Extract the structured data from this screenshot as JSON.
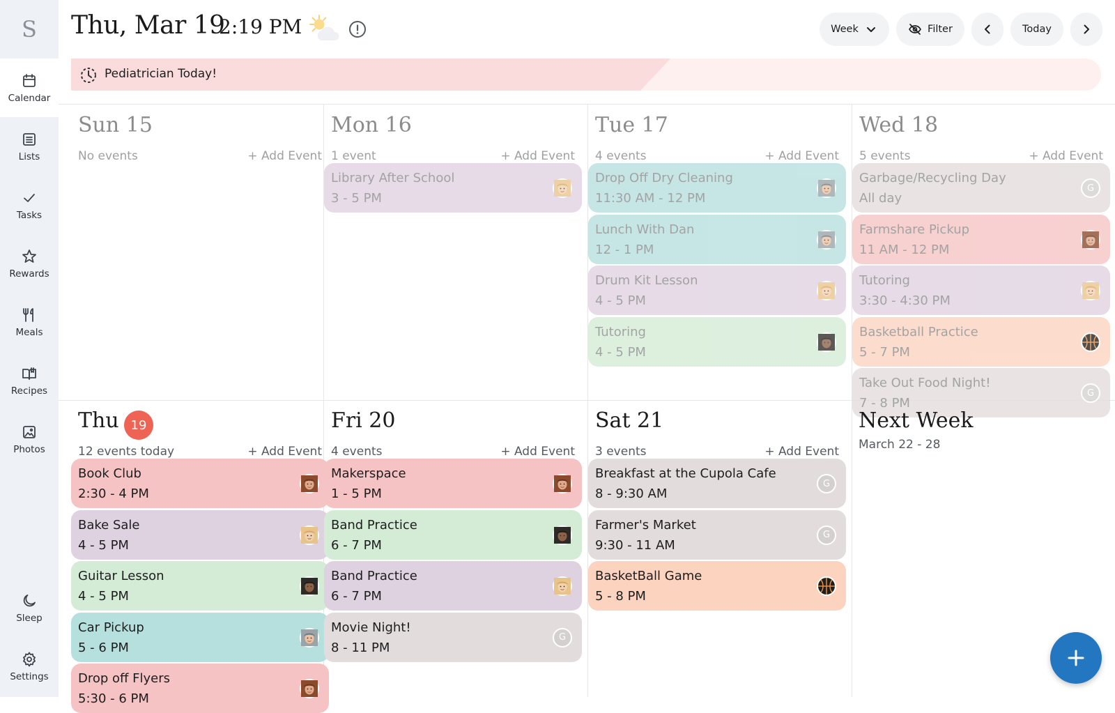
{
  "sidebar": {
    "logo": "S",
    "items": [
      {
        "label": "Calendar",
        "icon": "calendar-icon",
        "active": true
      },
      {
        "label": "Lists",
        "icon": "list-icon"
      },
      {
        "label": "Tasks",
        "icon": "checkmark-icon"
      },
      {
        "label": "Rewards",
        "icon": "star-icon"
      },
      {
        "label": "Meals",
        "icon": "fork-knife-icon"
      },
      {
        "label": "Recipes",
        "icon": "book-icon"
      },
      {
        "label": "Photos",
        "icon": "photo-icon"
      },
      {
        "label": "Sleep",
        "icon": "moon-icon"
      },
      {
        "label": "Settings",
        "icon": "gear-icon"
      }
    ]
  },
  "header": {
    "date": "Thu, Mar 19",
    "time": "2:19 PM",
    "weather_icon": "sun-cloud-icon",
    "alert_icon": "alert-circle-icon",
    "view_label": "Week",
    "filter_label": "Filter",
    "today_label": "Today"
  },
  "banner": {
    "icon": "progress-clock-icon",
    "text": "Pediatrician  Today!"
  },
  "days": [
    {
      "title": "Sun 15",
      "count": "No events",
      "add": "+ Add Event",
      "events": []
    },
    {
      "title": "Mon 16",
      "count": "1 event",
      "add": "+ Add Event",
      "events": [
        {
          "title": "Library After School",
          "time": "3 - 5 PM",
          "color": "purple",
          "avatar": "girl-blonde"
        }
      ]
    },
    {
      "title": "Tue 17",
      "count": "4 events",
      "add": "+ Add Event",
      "events": [
        {
          "title": "Drop Off Dry Cleaning",
          "time": "11:30 AM - 12 PM",
          "color": "teal",
          "avatar": "man-gray"
        },
        {
          "title": "Lunch With Dan",
          "time": "12 - 1 PM",
          "color": "teal",
          "avatar": "man-gray"
        },
        {
          "title": "Drum Kit Lesson",
          "time": "4 - 5 PM",
          "color": "purple",
          "avatar": "girl-blonde"
        },
        {
          "title": "Tutoring",
          "time": "4 - 5 PM",
          "color": "green",
          "avatar": "boy-dark"
        }
      ]
    },
    {
      "title": "Wed 18",
      "count": "5 events",
      "add": "+ Add Event",
      "events": [
        {
          "title": "Garbage/Recycling Day",
          "time": "All day",
          "color": "gray",
          "avatar": "G"
        },
        {
          "title": "Farmshare Pickup",
          "time": "11 AM - 12 PM",
          "color": "pink",
          "avatar": "woman-brown"
        },
        {
          "title": "Tutoring",
          "time": "3:30 - 4:30 PM",
          "color": "purple",
          "avatar": "girl-blonde"
        },
        {
          "title": "Basketball Practice",
          "time": "5 - 7 PM",
          "color": "orange",
          "avatar": "basketball"
        },
        {
          "title": "Take Out Food Night!",
          "time": "7 - 8 PM",
          "color": "gray",
          "avatar": "G"
        }
      ]
    },
    {
      "title": "Thu",
      "badge": "19",
      "count": "12 events today",
      "add": "+ Add Event",
      "events": [
        {
          "title": "Book Club",
          "time": "2:30 - 4 PM",
          "color": "pink",
          "avatar": "woman-brown"
        },
        {
          "title": "Bake Sale",
          "time": "4 - 5 PM",
          "color": "purple",
          "avatar": "girl-blonde"
        },
        {
          "title": "Guitar Lesson",
          "time": "4 - 5 PM",
          "color": "green",
          "avatar": "boy-dark"
        },
        {
          "title": "Car Pickup",
          "time": "5 - 6 PM",
          "color": "teal",
          "avatar": "man-gray"
        },
        {
          "title": "Drop off Flyers",
          "time": "5:30 - 6 PM",
          "color": "pink",
          "avatar": "woman-brown"
        }
      ]
    },
    {
      "title": "Fri 20",
      "count": "4 events",
      "add": "+ Add Event",
      "events": [
        {
          "title": "Makerspace",
          "time": "1 - 5 PM",
          "color": "pink",
          "avatar": "woman-brown"
        },
        {
          "title": "Band Practice",
          "time": "6 - 7 PM",
          "color": "green",
          "avatar": "boy-dark"
        },
        {
          "title": "Band Practice",
          "time": "6 - 7 PM",
          "color": "purple",
          "avatar": "girl-blonde"
        },
        {
          "title": "Movie Night!",
          "time": "8 - 11 PM",
          "color": "gray",
          "avatar": "G"
        }
      ]
    },
    {
      "title": "Sat 21",
      "count": "3 events",
      "add": "+ Add Event",
      "events": [
        {
          "title": "Breakfast at the Cupola Cafe",
          "time": "8 - 9:30 AM",
          "color": "gray",
          "avatar": "G"
        },
        {
          "title": "Farmer's Market",
          "time": "9:30 - 11 AM",
          "color": "gray",
          "avatar": "G"
        },
        {
          "title": "BasketBall Game",
          "time": "5 - 8 PM",
          "color": "orange",
          "avatar": "basketball"
        }
      ]
    }
  ],
  "next_week": {
    "title": "Next Week",
    "range": "March 22 - 28"
  },
  "fab": {
    "icon": "plus-icon"
  },
  "colors": {
    "pink": "#f6c3c4",
    "purple": "#dfd2e0",
    "teal": "#b6e0de",
    "green": "#d4ecd6",
    "gray": "#e3dcdc",
    "orange": "#fcd3be",
    "today_badge": "#ef6354",
    "fab": "#2377c0"
  }
}
